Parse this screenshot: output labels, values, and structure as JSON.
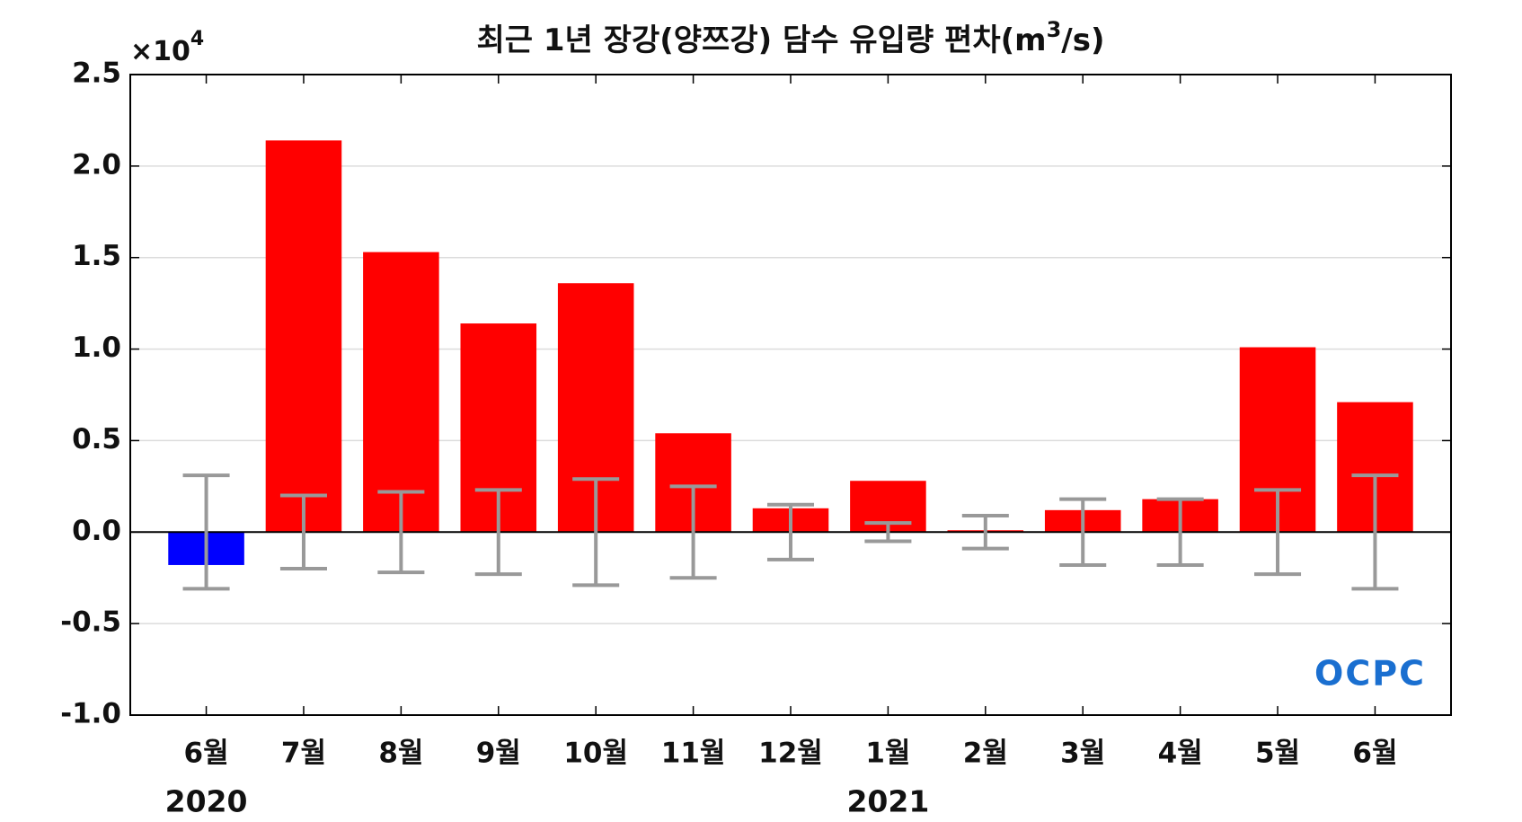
{
  "chart_data": {
    "type": "bar",
    "title": "최근 1년 장강(양쯔강) 담수 유입량 편차(m",
    "title_superscript": "3",
    "title_end": "/s)",
    "y_multiplier": "×10",
    "y_multiplier_exponent": "4",
    "categories": [
      "6월",
      "7월",
      "8월",
      "9월",
      "10월",
      "11월",
      "12월",
      "1월",
      "2월",
      "3월",
      "4월",
      "5월",
      "6월"
    ],
    "category_years": [
      "2020",
      null,
      null,
      null,
      null,
      null,
      null,
      "2021",
      null,
      null,
      null,
      null,
      null
    ],
    "values": [
      -0.18,
      2.14,
      1.53,
      1.14,
      1.36,
      0.54,
      0.13,
      0.28,
      0.01,
      0.12,
      0.18,
      1.01,
      0.71
    ],
    "errors": [
      0.31,
      0.2,
      0.22,
      0.23,
      0.29,
      0.25,
      0.15,
      0.05,
      0.09,
      0.18,
      0.18,
      0.23,
      0.31
    ],
    "positive_color": "#ff0000",
    "negative_color": "#0000ff",
    "error_color": "#999999",
    "ylim": [
      -1.0,
      2.5
    ],
    "yticks": [
      {
        "value": -1.0,
        "label": "-1.0"
      },
      -0.5,
      {
        "value": 0,
        "label": "0.0"
      },
      0.5,
      {
        "value": 1.0,
        "label": "1.0"
      },
      1.5,
      {
        "value": 2.0,
        "label": "2.0"
      },
      2.5
    ],
    "grid": true,
    "logo": "OCPC"
  }
}
